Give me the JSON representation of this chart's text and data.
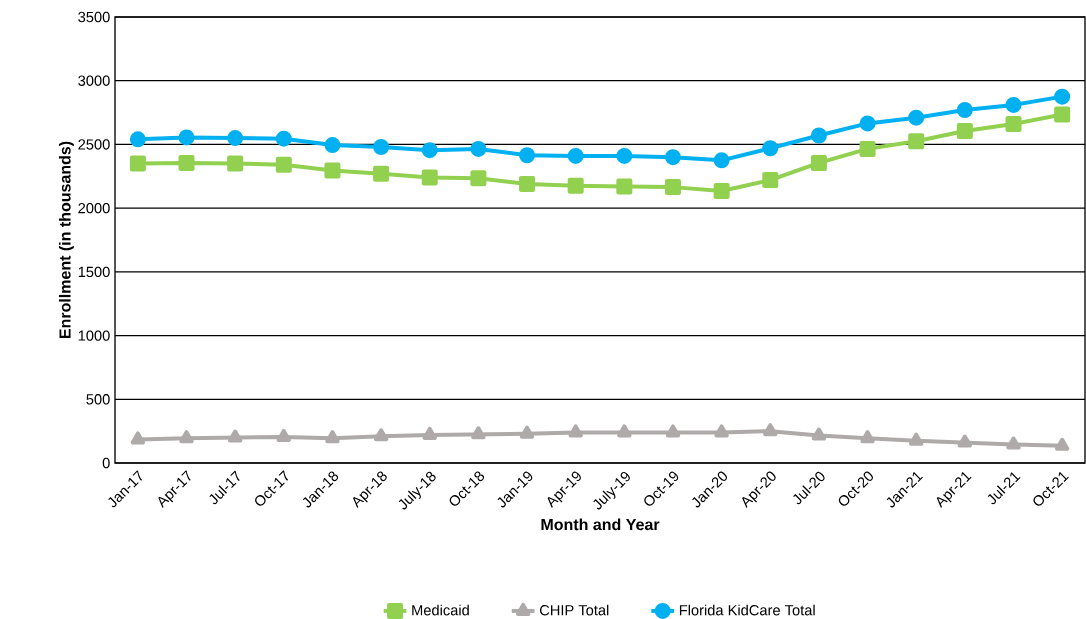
{
  "chart_data": {
    "type": "line",
    "xlabel": "Month and Year",
    "ylabel": "Enrollment (in thousands)",
    "categories": [
      "Jan-17",
      "Apr-17",
      "Jul-17",
      "Oct-17",
      "Jan-18",
      "Apr-18",
      "July-18",
      "Oct-18",
      "Jan-19",
      "Apr-19",
      "July-19",
      "Oct-19",
      "Jan-20",
      "Apr-20",
      "Jul-20",
      "Oct-20",
      "Jan-21",
      "Apr-21",
      "Jul-21",
      "Oct-21"
    ],
    "series": [
      {
        "name": "Medicaid",
        "color": "#92d050",
        "marker": "square",
        "values": [
          2350,
          2355,
          2350,
          2340,
          2295,
          2270,
          2240,
          2235,
          2190,
          2175,
          2170,
          2165,
          2135,
          2220,
          2355,
          2465,
          2525,
          2605,
          2660,
          2735
        ]
      },
      {
        "name": "CHIP Total",
        "color": "#aeaaaa",
        "marker": "triangle",
        "values": [
          185,
          195,
          200,
          205,
          195,
          210,
          220,
          225,
          230,
          240,
          240,
          240,
          240,
          250,
          215,
          195,
          175,
          160,
          145,
          135
        ]
      },
      {
        "name": "Florida KidCare Total",
        "color": "#00b0f0",
        "marker": "circle",
        "values": [
          2540,
          2555,
          2550,
          2545,
          2495,
          2480,
          2455,
          2465,
          2415,
          2410,
          2410,
          2400,
          2375,
          2470,
          2570,
          2665,
          2710,
          2770,
          2810,
          2875
        ]
      }
    ],
    "ylim": [
      0,
      3500
    ],
    "yticks": [
      0,
      500,
      1000,
      1500,
      2000,
      2500,
      3000,
      3500
    ],
    "grid": "y",
    "legend": "bottom",
    "line_style": "solid"
  }
}
